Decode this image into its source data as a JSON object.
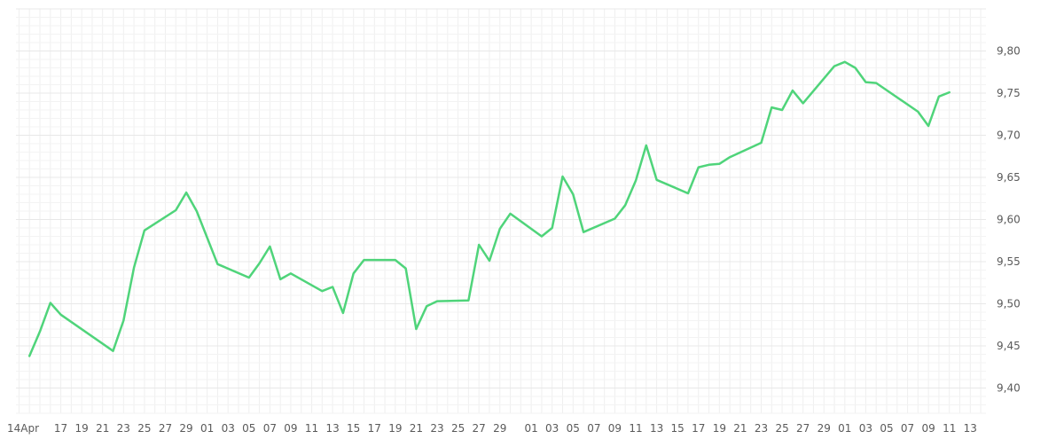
{
  "chart_data": {
    "type": "line",
    "title": "",
    "xlabel": "",
    "ylabel": "",
    "ylim": [
      9.37,
      9.85
    ],
    "grid": true,
    "decimal_separator": ",",
    "colors": {
      "line": "#4fd47a",
      "grid": "#efefef",
      "background": "#ffffff",
      "tick_text": "#5a5a5a"
    },
    "x_tick_labels": [
      "14Apr",
      "17",
      "19",
      "21",
      "23",
      "25",
      "27",
      "29",
      "01",
      "03",
      "05",
      "07",
      "09",
      "11",
      "13",
      "15",
      "17",
      "19",
      "21",
      "23",
      "25",
      "27",
      "29",
      "01",
      "03",
      "05",
      "07",
      "09",
      "11",
      "13",
      "15",
      "17",
      "19",
      "21",
      "23",
      "25",
      "27",
      "29",
      "01",
      "03",
      "05",
      "07",
      "09",
      "11",
      "13"
    ],
    "y_ticks": [
      9.4,
      9.45,
      9.5,
      9.55,
      9.6,
      9.65,
      9.7,
      9.75,
      9.8
    ],
    "y_tick_labels": [
      "9,40",
      "9,45",
      "9,50",
      "9,55",
      "9,60",
      "9,65",
      "9,70",
      "9,75",
      "9,80"
    ],
    "series": [
      {
        "x": [
          "2025-04-14",
          "2025-04-15",
          "2025-04-16",
          "2025-04-17",
          "2025-04-22",
          "2025-04-23",
          "2025-04-24",
          "2025-04-25",
          "2025-04-28",
          "2025-04-29",
          "2025-04-30",
          "2025-05-02",
          "2025-05-05",
          "2025-05-06",
          "2025-05-07",
          "2025-05-08",
          "2025-05-09",
          "2025-05-12",
          "2025-05-13",
          "2025-05-14",
          "2025-05-15",
          "2025-05-16",
          "2025-05-19",
          "2025-05-20",
          "2025-05-21",
          "2025-05-22",
          "2025-05-23",
          "2025-05-26",
          "2025-05-27",
          "2025-05-28",
          "2025-05-29",
          "2025-05-30",
          "2025-06-02",
          "2025-06-03",
          "2025-06-04",
          "2025-06-05",
          "2025-06-06",
          "2025-06-09",
          "2025-06-10",
          "2025-06-11",
          "2025-06-12",
          "2025-06-13",
          "2025-06-16",
          "2025-06-17",
          "2025-06-18",
          "2025-06-19",
          "2025-06-20",
          "2025-06-23",
          "2025-06-24",
          "2025-06-25",
          "2025-06-26",
          "2025-06-27",
          "2025-06-30",
          "2025-07-01",
          "2025-07-02",
          "2025-07-03",
          "2025-07-04",
          "2025-07-08",
          "2025-07-09",
          "2025-07-10",
          "2025-07-11"
        ],
        "values": [
          9.438,
          9.467,
          9.501,
          9.487,
          9.444,
          9.48,
          9.543,
          9.587,
          9.611,
          9.632,
          9.61,
          9.547,
          9.531,
          9.548,
          9.568,
          9.529,
          9.536,
          9.515,
          9.52,
          9.489,
          9.536,
          9.552,
          9.552,
          9.542,
          9.47,
          9.497,
          9.503,
          9.504,
          9.57,
          9.551,
          9.589,
          9.607,
          9.58,
          9.59,
          9.651,
          9.63,
          9.585,
          9.601,
          9.617,
          9.646,
          9.688,
          9.647,
          9.631,
          9.662,
          9.665,
          9.666,
          9.674,
          9.691,
          9.733,
          9.73,
          9.753,
          9.738,
          9.782,
          9.787,
          9.78,
          9.763,
          9.762,
          9.728,
          9.711,
          9.746,
          9.751
        ]
      }
    ]
  }
}
